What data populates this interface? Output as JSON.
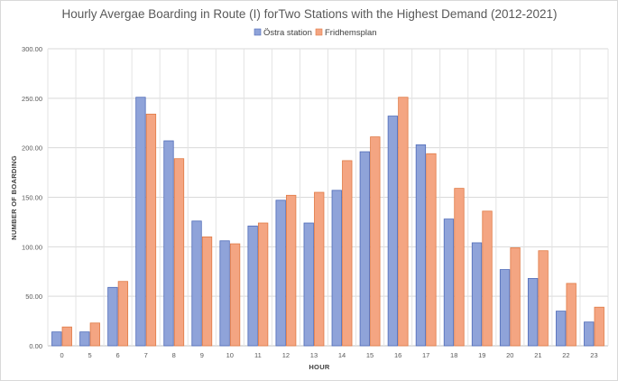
{
  "chart_data": {
    "type": "bar",
    "title": "Hourly Avergae Boarding in Route (I) forTwo Stations with the Highest Demand (2012-2021)",
    "xlabel": "HOUR",
    "ylabel": "NUMBER OF BOARDING",
    "ylim": [
      0,
      300
    ],
    "ytick_step": 50,
    "yticks": [
      "0.00",
      "50.00",
      "100.00",
      "150.00",
      "200.00",
      "250.00",
      "300.00"
    ],
    "grid": true,
    "legend_position": "top-center",
    "categories": [
      "0",
      "5",
      "6",
      "7",
      "8",
      "9",
      "10",
      "11",
      "12",
      "13",
      "14",
      "15",
      "16",
      "17",
      "18",
      "19",
      "20",
      "21",
      "22",
      "23"
    ],
    "series": [
      {
        "name": "Östra station",
        "color": "#8fa3d9",
        "values": [
          14,
          14,
          59,
          251,
          207,
          126,
          106,
          121,
          147,
          124,
          157,
          196,
          232,
          203,
          128,
          104,
          77,
          68,
          35,
          24
        ]
      },
      {
        "name": "Fridhemsplan",
        "color": "#f4a582",
        "values": [
          19,
          23,
          65,
          234,
          189,
          110,
          103,
          124,
          152,
          155,
          187,
          211,
          251,
          194,
          159,
          136,
          99,
          96,
          63,
          39
        ]
      }
    ]
  }
}
